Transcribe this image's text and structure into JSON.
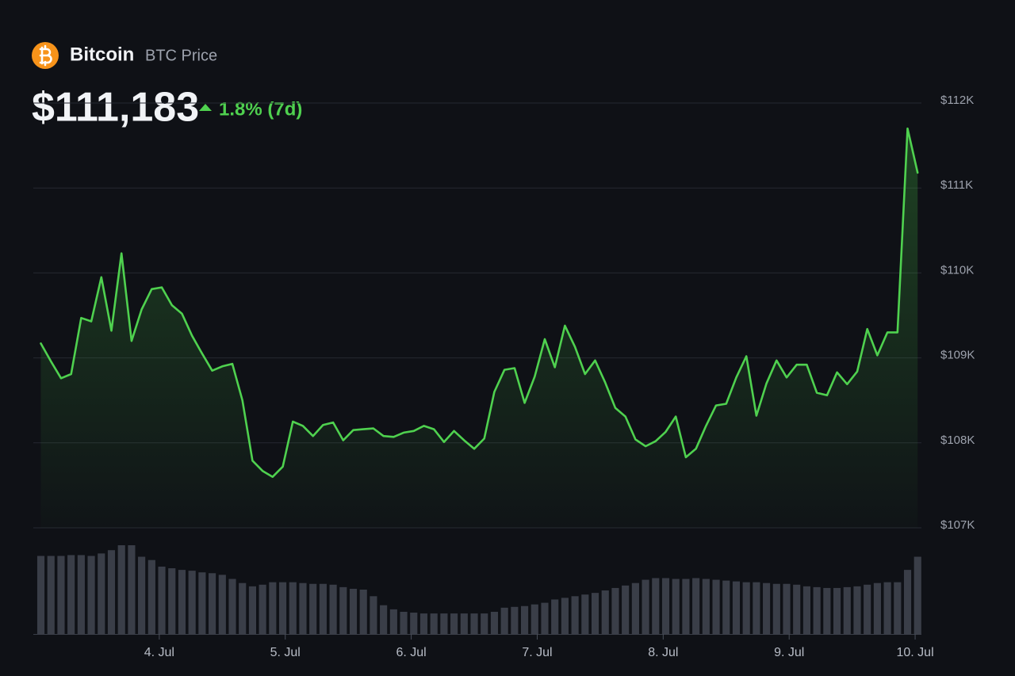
{
  "chart_data": {
    "type": "line",
    "title": "Bitcoin",
    "subtitle": "BTC Price",
    "current_price": "$111,183",
    "change": "1.8% (7d)",
    "color": "#4fd14f",
    "x": [
      3.06,
      3.14,
      3.22,
      3.3,
      3.38,
      3.46,
      3.54,
      3.62,
      3.7,
      3.78,
      3.86,
      3.94,
      4.02,
      4.1,
      4.18,
      4.26,
      4.34,
      4.42,
      4.5,
      4.58,
      4.66,
      4.74,
      4.82,
      4.9,
      4.98,
      5.06,
      5.14,
      5.22,
      5.3,
      5.38,
      5.46,
      5.54,
      5.62,
      5.7,
      5.78,
      5.86,
      5.94,
      6.02,
      6.1,
      6.18,
      6.26,
      6.34,
      6.42,
      6.5,
      6.58,
      6.66,
      6.74,
      6.82,
      6.9,
      6.98,
      7.06,
      7.14,
      7.22,
      7.3,
      7.38,
      7.46,
      7.54,
      7.62,
      7.7,
      7.78,
      7.86,
      7.94,
      8.02,
      8.1,
      8.18,
      8.26,
      8.34,
      8.42,
      8.5,
      8.58,
      8.66,
      8.74,
      8.82,
      8.9,
      8.98,
      9.06,
      9.14,
      9.22,
      9.3,
      9.38,
      9.46,
      9.54,
      9.62,
      9.7,
      9.78,
      9.86,
      9.94,
      10.02
    ],
    "values": [
      109170,
      108960,
      108760,
      108810,
      109470,
      109430,
      109950,
      109320,
      110230,
      109200,
      109570,
      109810,
      109830,
      109620,
      109520,
      109260,
      109050,
      108850,
      108900,
      108930,
      108500,
      107790,
      107670,
      107600,
      107720,
      108250,
      108200,
      108080,
      108210,
      108240,
      108030,
      108150,
      108160,
      108170,
      108080,
      108070,
      108120,
      108140,
      108200,
      108160,
      108010,
      108140,
      108030,
      107930,
      108050,
      108600,
      108860,
      108880,
      108470,
      108780,
      109220,
      108890,
      109380,
      109130,
      108810,
      108970,
      108710,
      108410,
      108310,
      108040,
      107960,
      108020,
      108130,
      108310,
      107830,
      107930,
      108200,
      108440,
      108460,
      108770,
      109020,
      108320,
      108700,
      108970,
      108770,
      108920,
      108920,
      108590,
      108560,
      108830,
      108690,
      108840,
      109340,
      109030,
      109300,
      109300,
      111700,
      111180
    ],
    "volume": {
      "color": "#3a3e48",
      "values": [
        95,
        95,
        95,
        96,
        96,
        95,
        98,
        102,
        108,
        108,
        94,
        90,
        82,
        80,
        78,
        77,
        75,
        74,
        72,
        67,
        62,
        58,
        60,
        63,
        63,
        63,
        62,
        61,
        61,
        60,
        57,
        55,
        54,
        46,
        35,
        30,
        27,
        26,
        25,
        25,
        25,
        25,
        25,
        25,
        25,
        27,
        32,
        33,
        34,
        36,
        38,
        42,
        44,
        46,
        48,
        50,
        53,
        56,
        59,
        62,
        66,
        68,
        68,
        67,
        67,
        68,
        67,
        66,
        65,
        64,
        63,
        63,
        62,
        61,
        61,
        60,
        58,
        57,
        56,
        56,
        57,
        58,
        60,
        62,
        63,
        63,
        78,
        94
      ]
    },
    "xlim": [
      3.0,
      10.05
    ],
    "xticks": [
      {
        "value": 4,
        "label": "4. Jul"
      },
      {
        "value": 5,
        "label": "5. Jul"
      },
      {
        "value": 6,
        "label": "6. Jul"
      },
      {
        "value": 7,
        "label": "7. Jul"
      },
      {
        "value": 8,
        "label": "8. Jul"
      },
      {
        "value": 9,
        "label": "9. Jul"
      },
      {
        "value": 10,
        "label": "10. Jul"
      }
    ],
    "ylim": [
      107000,
      112000
    ],
    "yticks": [
      {
        "value": 107000,
        "label": "$107K"
      },
      {
        "value": 108000,
        "label": "$108K"
      },
      {
        "value": 109000,
        "label": "$109K"
      },
      {
        "value": 110000,
        "label": "$110K"
      },
      {
        "value": 111000,
        "label": "$111K"
      },
      {
        "value": 112000,
        "label": "$112K"
      }
    ],
    "grid": true
  }
}
